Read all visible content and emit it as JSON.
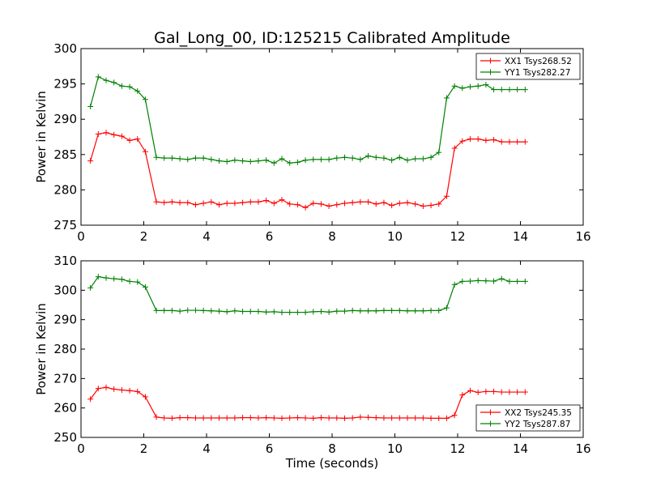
{
  "chart_data": [
    {
      "type": "line",
      "title": "Gal_Long_00, ID:125215 Calibrated Amplitude",
      "xlabel": "",
      "ylabel": "Power in Kelvin",
      "xlim": [
        0,
        16
      ],
      "ylim": [
        275,
        300
      ],
      "xticks": [
        "0",
        "2",
        "4",
        "6",
        "8",
        "10",
        "12",
        "14",
        "16"
      ],
      "yticks": [
        "275",
        "280",
        "285",
        "290",
        "295",
        "300"
      ],
      "legend_position": "upper right",
      "grid": false,
      "x": [
        0.3,
        0.55,
        0.8,
        1.05,
        1.3,
        1.55,
        1.8,
        2.05,
        2.4,
        2.65,
        2.9,
        3.15,
        3.4,
        3.65,
        3.9,
        4.15,
        4.4,
        4.65,
        4.9,
        5.15,
        5.4,
        5.65,
        5.9,
        6.15,
        6.4,
        6.65,
        6.9,
        7.15,
        7.4,
        7.65,
        7.9,
        8.15,
        8.4,
        8.65,
        8.9,
        9.15,
        9.4,
        9.65,
        9.9,
        10.15,
        10.4,
        10.65,
        10.9,
        11.15,
        11.4,
        11.65,
        11.9,
        12.15,
        12.4,
        12.65,
        12.9,
        13.15,
        13.4,
        13.65,
        13.9,
        14.15
      ],
      "series": [
        {
          "name": "XX1 Tsys268.52",
          "color": "#ff0000",
          "values": [
            284.1,
            287.9,
            288.1,
            287.8,
            287.6,
            287.0,
            287.2,
            285.4,
            278.3,
            278.2,
            278.3,
            278.2,
            278.2,
            277.9,
            278.1,
            278.3,
            277.9,
            278.1,
            278.1,
            278.2,
            278.3,
            278.3,
            278.5,
            278.1,
            278.6,
            278.0,
            277.9,
            277.5,
            278.1,
            278.0,
            277.7,
            277.9,
            278.1,
            278.2,
            278.3,
            278.3,
            278.0,
            278.2,
            277.8,
            278.1,
            278.2,
            278.0,
            277.7,
            277.8,
            278.0,
            279.1,
            285.9,
            286.9,
            287.2,
            287.2,
            287.0,
            287.1,
            286.8,
            286.8,
            286.8,
            286.8
          ]
        },
        {
          "name": "YY1 Tsys282.27",
          "color": "#008000",
          "values": [
            291.8,
            296.0,
            295.5,
            295.2,
            294.7,
            294.6,
            294.0,
            292.8,
            284.6,
            284.5,
            284.5,
            284.4,
            284.3,
            284.5,
            284.5,
            284.3,
            284.1,
            284.0,
            284.2,
            284.1,
            284.0,
            284.1,
            284.2,
            283.8,
            284.4,
            283.8,
            283.9,
            284.2,
            284.3,
            284.3,
            284.3,
            284.5,
            284.6,
            284.5,
            284.3,
            284.8,
            284.6,
            284.5,
            284.2,
            284.6,
            284.2,
            284.4,
            284.4,
            284.6,
            285.3,
            293.0,
            294.7,
            294.4,
            294.6,
            294.7,
            294.9,
            294.2,
            294.2,
            294.2,
            294.2,
            294.2
          ]
        }
      ]
    },
    {
      "type": "line",
      "title": "",
      "xlabel": "Time (seconds)",
      "ylabel": "Power in Kelvin",
      "xlim": [
        0,
        16
      ],
      "ylim": [
        250,
        310
      ],
      "xticks": [
        "0",
        "2",
        "4",
        "6",
        "8",
        "10",
        "12",
        "14",
        "16"
      ],
      "yticks": [
        "250",
        "260",
        "270",
        "280",
        "290",
        "300",
        "310"
      ],
      "legend_position": "lower right",
      "grid": false,
      "x": [
        0.3,
        0.55,
        0.8,
        1.05,
        1.3,
        1.55,
        1.8,
        2.05,
        2.4,
        2.65,
        2.9,
        3.15,
        3.4,
        3.65,
        3.9,
        4.15,
        4.4,
        4.65,
        4.9,
        5.15,
        5.4,
        5.65,
        5.9,
        6.15,
        6.4,
        6.65,
        6.9,
        7.15,
        7.4,
        7.65,
        7.9,
        8.15,
        8.4,
        8.65,
        8.9,
        9.15,
        9.4,
        9.65,
        9.9,
        10.15,
        10.4,
        10.65,
        10.9,
        11.15,
        11.4,
        11.65,
        11.9,
        12.15,
        12.4,
        12.65,
        12.9,
        13.15,
        13.4,
        13.65,
        13.9,
        14.15
      ],
      "series": [
        {
          "name": "XX2 Tsys245.35",
          "color": "#ff0000",
          "values": [
            263.0,
            266.6,
            267.0,
            266.4,
            266.1,
            265.9,
            265.6,
            263.8,
            256.9,
            256.6,
            256.5,
            256.7,
            256.7,
            256.6,
            256.6,
            256.6,
            256.6,
            256.6,
            256.6,
            256.7,
            256.7,
            256.6,
            256.7,
            256.6,
            256.5,
            256.6,
            256.7,
            256.6,
            256.5,
            256.7,
            256.6,
            256.6,
            256.5,
            256.6,
            256.9,
            256.8,
            256.7,
            256.6,
            256.6,
            256.6,
            256.6,
            256.6,
            256.6,
            256.5,
            256.5,
            256.5,
            257.5,
            264.4,
            265.9,
            265.3,
            265.6,
            265.6,
            265.4,
            265.4,
            265.4,
            265.4
          ]
        },
        {
          "name": "YY2 Tsys287.87",
          "color": "#008000",
          "values": [
            300.8,
            304.6,
            304.2,
            303.9,
            303.7,
            303.0,
            302.8,
            301.1,
            293.1,
            293.1,
            293.1,
            292.9,
            293.2,
            293.2,
            293.1,
            293.0,
            292.9,
            292.7,
            293.0,
            292.8,
            292.8,
            292.8,
            292.6,
            292.7,
            292.5,
            292.5,
            292.5,
            292.5,
            292.7,
            292.8,
            292.6,
            292.9,
            292.9,
            293.1,
            293.0,
            293.0,
            293.0,
            293.1,
            293.1,
            293.1,
            293.0,
            293.0,
            293.0,
            293.1,
            293.1,
            294.0,
            301.9,
            303.0,
            303.1,
            303.3,
            303.2,
            303.1,
            303.9,
            303.0,
            303.0,
            303.0
          ]
        }
      ]
    }
  ]
}
